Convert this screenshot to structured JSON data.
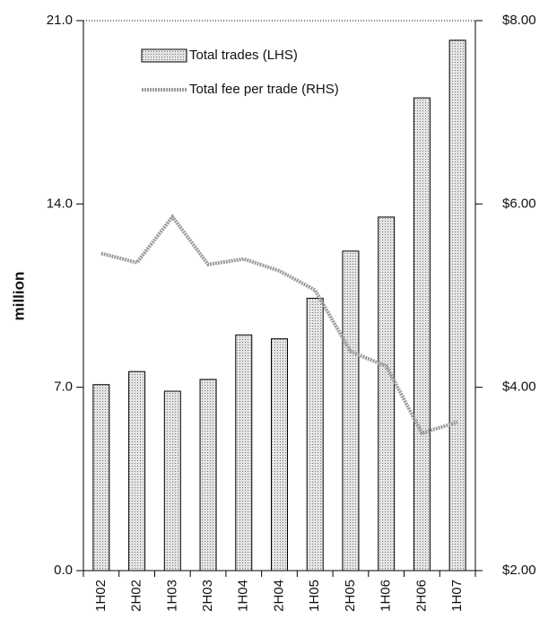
{
  "chart_data": {
    "type": "bar_line",
    "categories": [
      "1H02",
      "2H02",
      "1H03",
      "2H03",
      "1H04",
      "2H04",
      "1H05",
      "2H05",
      "1H06",
      "2H06",
      "1H07"
    ],
    "ylabel": "million",
    "ylim": [
      0,
      21
    ],
    "yticks": [
      {
        "value": 0,
        "label": "0.0"
      },
      {
        "value": 7,
        "label": "7.0"
      },
      {
        "value": 14,
        "label": "14.0"
      },
      {
        "value": 21,
        "label": "21.0"
      }
    ],
    "y2lim": [
      2,
      8
    ],
    "y2ticks": [
      {
        "value": 2,
        "label": "$2.00"
      },
      {
        "value": 4,
        "label": "$4.00"
      },
      {
        "value": 6,
        "label": "$6.00"
      },
      {
        "value": 8,
        "label": "$8.00"
      }
    ],
    "legend": "upper left",
    "series": [
      {
        "name": "Total trades (LHS)",
        "type": "bar",
        "color": "#c8c8c8",
        "values": [
          7.1,
          7.6,
          6.85,
          7.3,
          9.0,
          8.85,
          10.4,
          12.2,
          13.5,
          18.05,
          20.25
        ]
      },
      {
        "name": "Total fee per trade (RHS)",
        "type": "line",
        "axis": "y2",
        "color": "#9a9a9a",
        "values": [
          5.46,
          5.36,
          5.86,
          5.34,
          5.4,
          5.27,
          5.06,
          4.39,
          4.23,
          3.5,
          3.62
        ]
      }
    ]
  }
}
